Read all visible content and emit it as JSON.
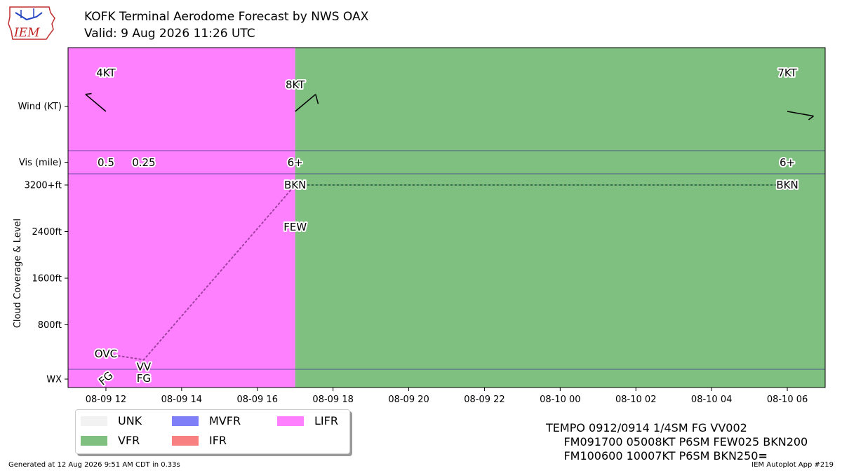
{
  "title_line1": "KOFK Terminal Aerodome Forecast by NWS OAX",
  "title_line2": "Valid: 9 Aug 2026 11:26 UTC",
  "logo_text": "IEM",
  "taf_text": [
    "TEMPO 0912/0914 1/4SM FG VV002",
    "FM091700 05008KT P6SM FEW025 BKN200",
    "FM100600 10007KT P6SM BKN250"
  ],
  "taf_terminator": "=",
  "footer_left": "Generated at 12 Aug 2026 9:51 AM CDT in 0.33s",
  "footer_right": "IEM Autoplot App #219",
  "legend": [
    {
      "label": "UNK",
      "color": "#f2f2f2"
    },
    {
      "label": "VFR",
      "color": "#7fbf7f"
    },
    {
      "label": "MVFR",
      "color": "#7f7ff8"
    },
    {
      "label": "IFR",
      "color": "#f88080"
    },
    {
      "label": "LIFR",
      "color": "#ff80ff"
    }
  ],
  "chart_data": {
    "type": "timeline",
    "x_start": "08-09 11:00",
    "x_end": "08-10 07:00",
    "x_tick_labels": [
      "08-09 12",
      "08-09 14",
      "08-09 16",
      "08-09 18",
      "08-09 20",
      "08-09 22",
      "08-10 00",
      "08-10 02",
      "08-10 04",
      "08-10 06"
    ],
    "row_labels": {
      "wind": "Wind (KT)",
      "vis": "Vis (mile)",
      "wx": "WX"
    },
    "cloud_axis_label": "Cloud Coverage & Level",
    "cloud_ytick_labels": [
      "800ft",
      "1600ft",
      "2400ft",
      "3200+ft"
    ],
    "cloud_ylim": [
      0,
      3200
    ],
    "category_periods": [
      {
        "start": "08-09 11:00",
        "end": "08-09 17:00",
        "category": "LIFR",
        "color": "#ff80ff"
      },
      {
        "start": "08-09 17:00",
        "end": "08-10 07:00",
        "category": "VFR",
        "color": "#7fbf7f"
      }
    ],
    "wind": [
      {
        "time": "08-09 12:00",
        "label": "4KT",
        "direction_deg": 310,
        "speed_kt": 4
      },
      {
        "time": "08-09 17:00",
        "label": "8KT",
        "direction_deg": 50,
        "speed_kt": 8
      },
      {
        "time": "08-10 06:00",
        "label": "7KT",
        "direction_deg": 100,
        "speed_kt": 7
      }
    ],
    "visibility": [
      {
        "time": "08-09 12:00",
        "label": "0.5"
      },
      {
        "time": "08-09 13:00",
        "label": "0.25"
      },
      {
        "time": "08-09 17:00",
        "label": "6+"
      },
      {
        "time": "08-10 06:00",
        "label": "6+"
      }
    ],
    "clouds": [
      {
        "time": "08-09 12:00",
        "cover": "OVC",
        "level_ft": 300
      },
      {
        "time": "08-09 13:00",
        "cover": "VV",
        "level_ft": 200
      },
      {
        "time": "08-09 17:00",
        "cover": "BKN",
        "level_ft": 3200
      },
      {
        "time": "08-09 17:00",
        "cover": "FEW",
        "level_ft": 2500
      },
      {
        "time": "08-10 06:00",
        "cover": "BKN",
        "level_ft": 3200
      }
    ],
    "cloud_line": [
      {
        "time": "08-09 12:00",
        "level_ft": 300
      },
      {
        "time": "08-09 13:00",
        "level_ft": 200
      },
      {
        "time": "08-09 17:00",
        "level_ft": 3200
      },
      {
        "time": "08-10 06:00",
        "level_ft": 3200
      }
    ],
    "weather": [
      {
        "time": "08-09 12:00",
        "label": "FG",
        "rotated": true
      },
      {
        "time": "08-09 13:00",
        "label": "FG",
        "rotated": false
      }
    ]
  }
}
